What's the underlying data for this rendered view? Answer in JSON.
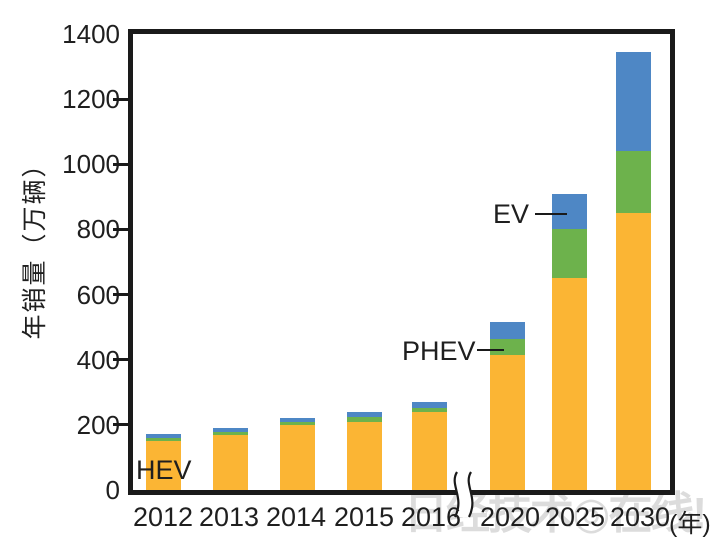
{
  "chart_data": {
    "type": "bar",
    "subtype": "stacked",
    "title": "",
    "ylabel": "年销量（万辆）",
    "x_unit_label": "(年)",
    "ylim": [
      0,
      1400
    ],
    "yticks": [
      0,
      200,
      400,
      600,
      800,
      1000,
      1200,
      1400
    ],
    "grid": false,
    "legend_position": "inline-annotations",
    "categories": [
      "2012",
      "2013",
      "2014",
      "2015",
      "2016",
      "2020",
      "2025",
      "2030"
    ],
    "axis_break_between": [
      "2016",
      "2020"
    ],
    "series": [
      {
        "name": "HEV",
        "color": "#FBB534",
        "values": [
          150,
          170,
          200,
          210,
          240,
          415,
          650,
          850
        ]
      },
      {
        "name": "PHEV",
        "color": "#6DB24C",
        "values": [
          10,
          7,
          8,
          13,
          13,
          50,
          150,
          190
        ]
      },
      {
        "name": "EV",
        "color": "#4E87C5",
        "values": [
          12,
          13,
          14,
          17,
          18,
          50,
          110,
          305
        ]
      }
    ],
    "totals": [
      172,
      190,
      222,
      240,
      271,
      515,
      910,
      1345
    ],
    "annotations": [
      {
        "label": "HEV",
        "target": "2012 HEV segment"
      },
      {
        "label": "PHEV",
        "target": "2020 PHEV segment"
      },
      {
        "label": "EV",
        "target": "2025 EV segment"
      }
    ],
    "axis_color": "#1A1A1A"
  },
  "watermark": {
    "text": "日经技术◎在线!",
    "color": "#DCDCDC"
  }
}
